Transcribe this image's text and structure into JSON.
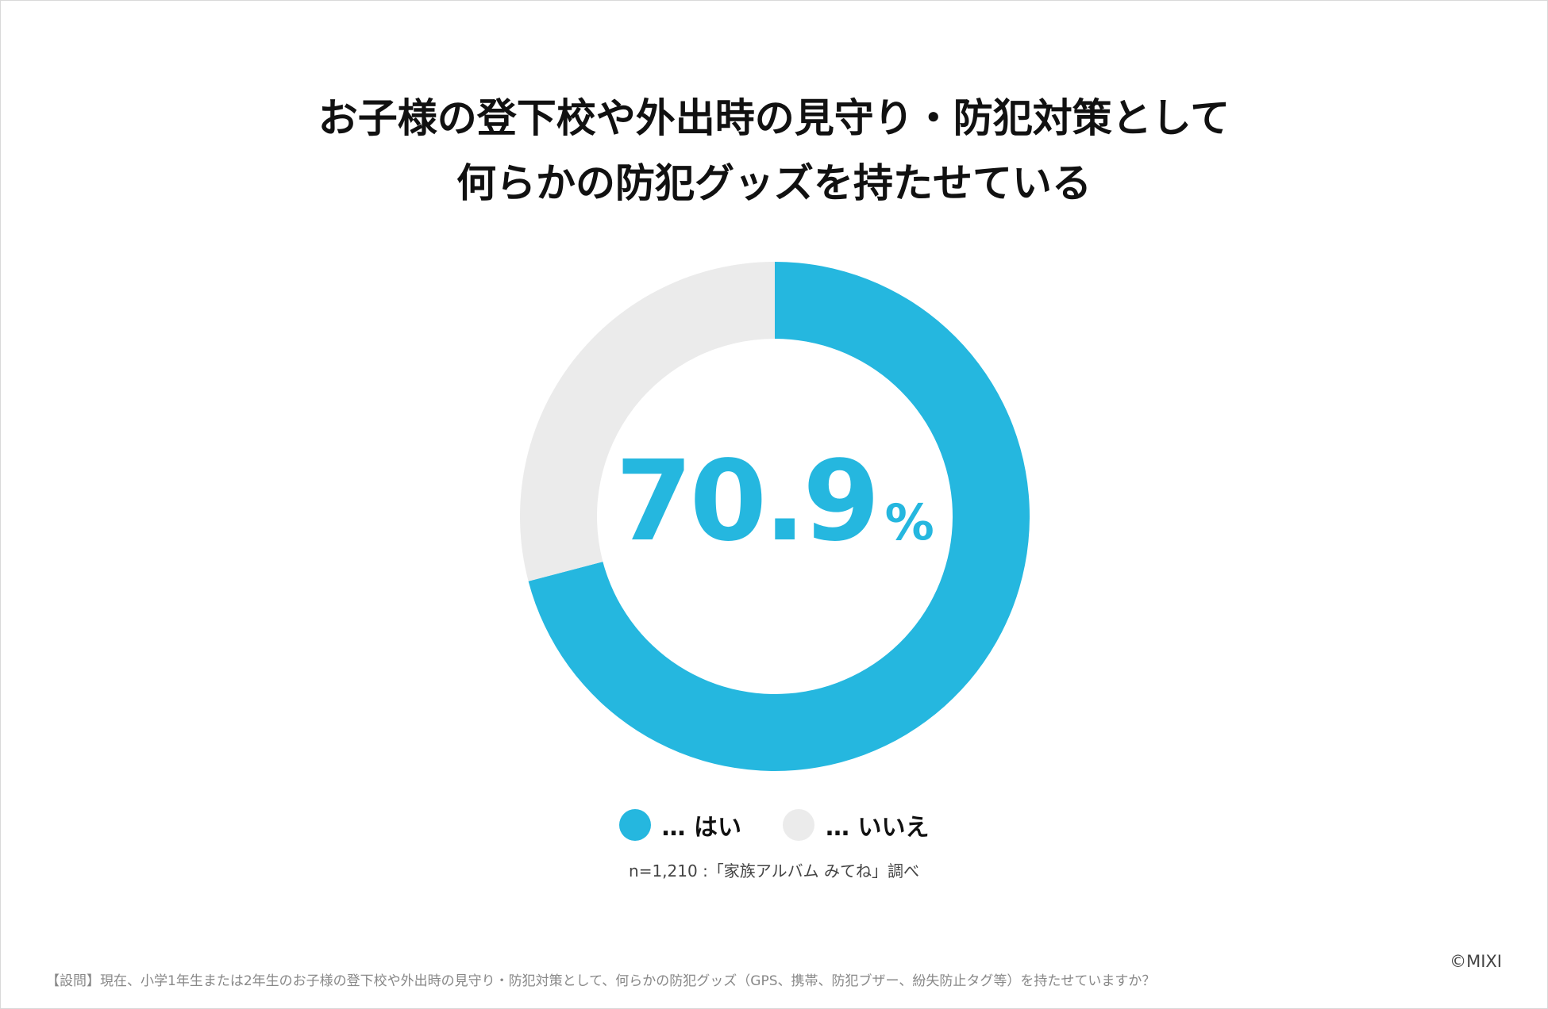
{
  "title": {
    "line1": "お子様の登下校や外出時の見守り・防犯対策として",
    "line2": "何らかの防犯グッズを持たせている"
  },
  "chart_data": {
    "type": "pie",
    "donut": true,
    "center_value": "70.9",
    "center_unit": "%",
    "slices": [
      {
        "label": "はい",
        "value": 70.9,
        "color": "#25B7DF"
      },
      {
        "label": "いいえ",
        "value": 29.1,
        "color": "#EBEBEB"
      }
    ],
    "legend_position": "bottom"
  },
  "legend": {
    "items": [
      {
        "text": "… はい",
        "color": "#25B7DF"
      },
      {
        "text": "… いいえ",
        "color": "#EBEBEB"
      }
    ]
  },
  "source": "n=1,210 :「家族アルバム みてね」調べ",
  "footnote": "【設問】現在、小学1年生または2年生のお子様の登下校や外出時の見守り・防犯対策として、何らかの防犯グッズ（GPS、携帯、防犯ブザー、紛失防止タグ等）を持たせていますか？",
  "copyright": "©MIXI"
}
